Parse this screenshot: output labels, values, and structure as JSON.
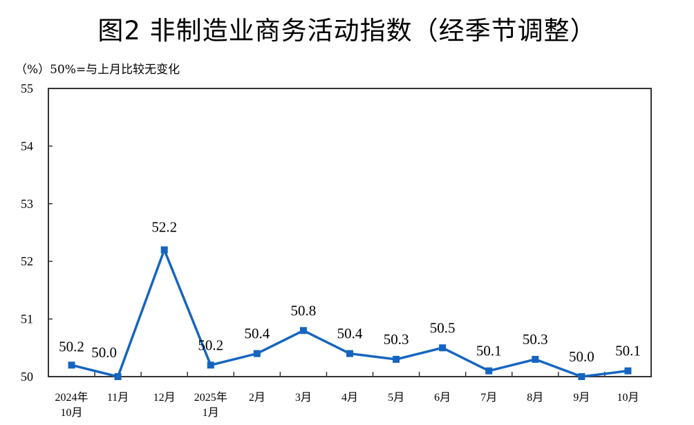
{
  "title": "图2  非制造业商务活动指数（经季节调整）",
  "unit_note": "（%）50%=与上月比较无变化",
  "colors": {
    "series": "#1565C0",
    "axis": "#333333"
  },
  "chart_data": {
    "type": "line",
    "title": "图2  非制造业商务活动指数（经季节调整）",
    "ylabel": "（%）50%=与上月比较无变化",
    "xlabel": "",
    "ylim": [
      50,
      55
    ],
    "yticks": [
      50,
      51,
      52,
      53,
      54,
      55
    ],
    "categories": [
      "2024年10月",
      "11月",
      "12月",
      "2025年1月",
      "2月",
      "3月",
      "4月",
      "5月",
      "6月",
      "7月",
      "8月",
      "9月",
      "10月"
    ],
    "category_lines": [
      [
        "2024年",
        "10月"
      ],
      [
        "11月"
      ],
      [
        "12月"
      ],
      [
        "2025年",
        "1月"
      ],
      [
        "2月"
      ],
      [
        "3月"
      ],
      [
        "4月"
      ],
      [
        "5月"
      ],
      [
        "6月"
      ],
      [
        "7月"
      ],
      [
        "8月"
      ],
      [
        "9月"
      ],
      [
        "10月"
      ]
    ],
    "series": [
      {
        "name": "非制造业商务活动指数",
        "values": [
          50.2,
          50.0,
          52.2,
          50.2,
          50.4,
          50.8,
          50.4,
          50.3,
          50.5,
          50.1,
          50.3,
          50.0,
          50.1
        ]
      }
    ],
    "data_labels": [
      "50.2",
      "50.0",
      "52.2",
      "50.2",
      "50.4",
      "50.8",
      "50.4",
      "50.3",
      "50.5",
      "50.1",
      "50.3",
      "50.0",
      "50.1"
    ],
    "grid": false,
    "legend": "none"
  }
}
